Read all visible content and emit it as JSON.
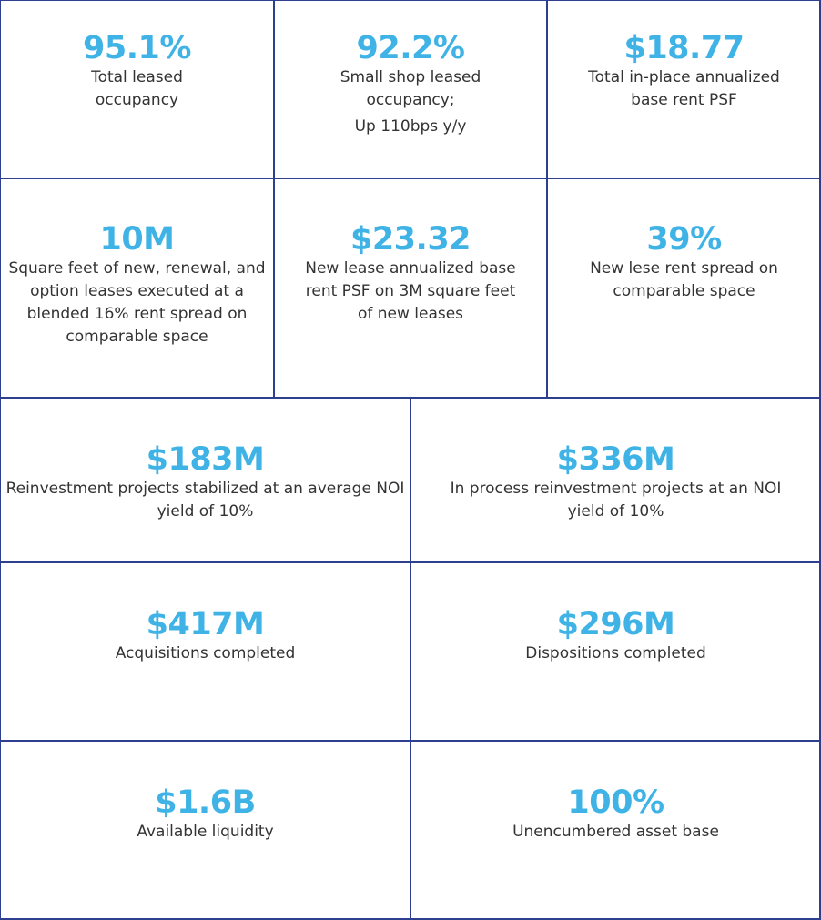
{
  "colors": {
    "metric": "#3fb3e6",
    "text": "#333333",
    "border": "#2d3f8f"
  },
  "rows": [
    {
      "cells": [
        {
          "value": "95.1%",
          "label": "Total leased occupancy"
        },
        {
          "value": "92.2%",
          "label": "Small shop leased occupancy;",
          "label2": "Up 110bps y/y"
        },
        {
          "value": "$18.77",
          "label": "Total in-place annualized base rent PSF"
        }
      ]
    },
    {
      "cells": [
        {
          "value": "10M",
          "label": "Square feet of new, renewal, and option leases executed at a blended 16% rent spread on comparable space"
        },
        {
          "value": "$23.32",
          "label": "New lease annualized base rent PSF on 3M square feet of new leases"
        },
        {
          "value": "39%",
          "label": "New lese rent spread on comparable space"
        }
      ]
    },
    {
      "cells": [
        {
          "value": "$183M",
          "label": "Reinvestment projects stabilized at an average NOI yield of 10%"
        },
        {
          "value": "$336M",
          "label": "In process reinvestment projects at an NOI yield of 10%"
        }
      ]
    },
    {
      "cells": [
        {
          "value": "$417M",
          "label": "Acquisitions completed"
        },
        {
          "value": "$296M",
          "label": "Dispositions completed"
        }
      ]
    },
    {
      "cells": [
        {
          "value": "$1.6B",
          "label": "Available liquidity"
        },
        {
          "value": "100%",
          "label": "Unencumbered asset base"
        }
      ]
    }
  ]
}
